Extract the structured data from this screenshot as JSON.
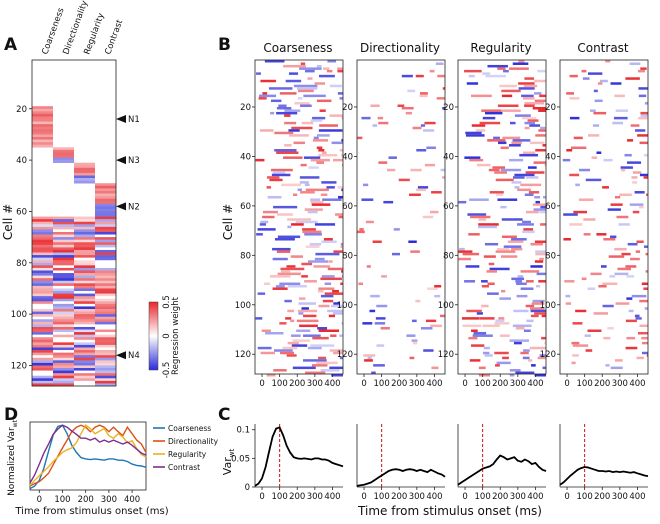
{
  "chart_data": [
    {
      "panel": "A",
      "type": "heatmap",
      "columns": [
        "Coarseness",
        "Directionality",
        "Regularity",
        "Contrast"
      ],
      "ylabel": "Cell #",
      "yticks": [
        20,
        40,
        60,
        80,
        100,
        120
      ],
      "ylim": [
        1,
        128
      ],
      "groups": [
        {
          "feature": "Coarseness",
          "cells": [
            19,
            35
          ]
        },
        {
          "feature": "Directionality",
          "cells": [
            35,
            41
          ]
        },
        {
          "feature": "Regularity",
          "cells": [
            41,
            49
          ]
        },
        {
          "feature": "Contrast",
          "cells": [
            49,
            62
          ]
        },
        {
          "feature": "Coarseness",
          "cells": [
            62,
            128
          ]
        },
        {
          "feature": "Directionality",
          "cells": [
            62,
            128
          ]
        },
        {
          "feature": "Regularity",
          "cells": [
            62,
            128
          ]
        },
        {
          "feature": "Contrast",
          "cells": [
            62,
            128
          ]
        }
      ],
      "annotations": [
        {
          "label": "N1",
          "cell": 24
        },
        {
          "label": "N3",
          "cell": 40
        },
        {
          "label": "N2",
          "cell": 58
        },
        {
          "label": "N4",
          "cell": 116
        }
      ],
      "colorbar": {
        "label": "Regression weight",
        "ticks": [
          "0.5",
          "0",
          "-0.5"
        ],
        "range": [
          -0.5,
          0.5
        ],
        "pos_color": "#e8262b",
        "neg_color": "#2a2ad8"
      }
    },
    {
      "panel": "B",
      "type": "heatmap",
      "titles": [
        "Coarseness",
        "Directionality",
        "Regularity",
        "Contrast"
      ],
      "ylabel": "Cell #",
      "yticks": [
        20,
        40,
        60,
        80,
        100,
        120
      ],
      "xticks": [
        0,
        100,
        200,
        300,
        400
      ],
      "xlim": [
        -40,
        460
      ],
      "ylim": [
        1,
        128
      ]
    },
    {
      "panel": "C",
      "type": "line",
      "ylabel": "Var",
      "ylabel_sub": "wt",
      "xlabel": "Time from stimulus onset (ms)",
      "yticks": [
        "0",
        "0.05",
        "0.1"
      ],
      "ylim": [
        0,
        0.11
      ],
      "xlim": [
        -40,
        460
      ],
      "xticks": [
        0,
        100,
        200,
        300,
        400
      ],
      "stimulus_marker_ms": 100,
      "series": [
        {
          "name": "Coarseness",
          "x": [
            -40,
            -20,
            0,
            20,
            40,
            60,
            80,
            100,
            120,
            140,
            160,
            180,
            200,
            220,
            240,
            260,
            280,
            300,
            320,
            340,
            360,
            380,
            400,
            420,
            440,
            460
          ],
          "y": [
            0.002,
            0.006,
            0.015,
            0.035,
            0.062,
            0.088,
            0.102,
            0.104,
            0.09,
            0.072,
            0.06,
            0.052,
            0.05,
            0.049,
            0.05,
            0.049,
            0.048,
            0.05,
            0.05,
            0.048,
            0.048,
            0.046,
            0.042,
            0.04,
            0.038,
            0.036
          ]
        },
        {
          "name": "Directionality",
          "x": [
            -40,
            -20,
            0,
            20,
            40,
            60,
            80,
            100,
            120,
            140,
            160,
            180,
            200,
            220,
            240,
            260,
            280,
            300,
            320,
            340,
            360,
            380,
            400,
            420,
            440,
            460
          ],
          "y": [
            0.002,
            0.003,
            0.004,
            0.006,
            0.008,
            0.012,
            0.016,
            0.02,
            0.024,
            0.028,
            0.03,
            0.031,
            0.03,
            0.028,
            0.03,
            0.031,
            0.03,
            0.028,
            0.03,
            0.028,
            0.026,
            0.03,
            0.027,
            0.024,
            0.022,
            0.018
          ]
        },
        {
          "name": "Regularity",
          "x": [
            -40,
            -20,
            0,
            20,
            40,
            60,
            80,
            100,
            120,
            140,
            160,
            180,
            200,
            220,
            240,
            260,
            280,
            300,
            320,
            340,
            360,
            380,
            400,
            420,
            440,
            460
          ],
          "y": [
            0.004,
            0.008,
            0.012,
            0.016,
            0.02,
            0.024,
            0.028,
            0.032,
            0.034,
            0.036,
            0.04,
            0.048,
            0.055,
            0.052,
            0.048,
            0.05,
            0.052,
            0.046,
            0.044,
            0.048,
            0.045,
            0.04,
            0.042,
            0.035,
            0.03,
            0.028
          ]
        },
        {
          "name": "Contrast",
          "x": [
            -40,
            -20,
            0,
            20,
            40,
            60,
            80,
            100,
            120,
            140,
            160,
            180,
            200,
            220,
            240,
            260,
            280,
            300,
            320,
            340,
            360,
            380,
            400,
            420,
            440,
            460
          ],
          "y": [
            0.004,
            0.008,
            0.014,
            0.02,
            0.025,
            0.03,
            0.033,
            0.035,
            0.034,
            0.032,
            0.03,
            0.028,
            0.028,
            0.027,
            0.028,
            0.026,
            0.027,
            0.026,
            0.027,
            0.026,
            0.025,
            0.026,
            0.024,
            0.022,
            0.02,
            0.019
          ]
        }
      ]
    },
    {
      "panel": "D",
      "type": "line",
      "ylabel": "Normalized Var",
      "ylabel_sub": "wt",
      "xlabel": "Time from stimulus onset (ms)",
      "xticks": [
        0,
        100,
        200,
        300,
        400
      ],
      "xlim": [
        -40,
        460
      ],
      "ylim": [
        0,
        1.05
      ],
      "legend_position": "right",
      "series": [
        {
          "name": "Coarseness",
          "color": "#1f77b4",
          "x": [
            -40,
            -20,
            0,
            20,
            40,
            60,
            80,
            100,
            120,
            140,
            160,
            180,
            200,
            220,
            240,
            260,
            280,
            300,
            320,
            340,
            360,
            380,
            400,
            420,
            440,
            460
          ],
          "y": [
            0.02,
            0.06,
            0.15,
            0.34,
            0.6,
            0.85,
            0.98,
            1.0,
            0.87,
            0.69,
            0.58,
            0.5,
            0.48,
            0.47,
            0.48,
            0.47,
            0.46,
            0.48,
            0.48,
            0.46,
            0.46,
            0.44,
            0.4,
            0.38,
            0.37,
            0.35
          ]
        },
        {
          "name": "Directionality",
          "color": "#d95319",
          "x": [
            -40,
            -20,
            0,
            20,
            40,
            60,
            80,
            100,
            120,
            140,
            160,
            180,
            200,
            220,
            240,
            260,
            280,
            300,
            320,
            340,
            360,
            380,
            400,
            420,
            440,
            460
          ],
          "y": [
            0.06,
            0.1,
            0.13,
            0.19,
            0.26,
            0.39,
            0.52,
            0.65,
            0.77,
            0.9,
            0.97,
            1.0,
            0.97,
            0.9,
            0.97,
            1.0,
            0.97,
            0.9,
            0.97,
            0.9,
            0.84,
            0.97,
            0.87,
            0.77,
            0.71,
            0.58
          ]
        },
        {
          "name": "Regularity",
          "color": "#edb120",
          "x": [
            -40,
            -20,
            0,
            20,
            40,
            60,
            80,
            100,
            120,
            140,
            160,
            180,
            200,
            220,
            240,
            260,
            280,
            300,
            320,
            340,
            360,
            380,
            400,
            420,
            440,
            460
          ],
          "y": [
            0.07,
            0.15,
            0.22,
            0.29,
            0.36,
            0.44,
            0.51,
            0.58,
            0.62,
            0.65,
            0.73,
            0.87,
            1.0,
            0.95,
            0.87,
            0.91,
            0.95,
            0.84,
            0.8,
            0.87,
            0.82,
            0.73,
            0.76,
            0.64,
            0.55,
            0.51
          ]
        },
        {
          "name": "Contrast",
          "color": "#7e2f8e",
          "x": [
            -40,
            -20,
            0,
            20,
            40,
            60,
            80,
            100,
            120,
            140,
            160,
            180,
            200,
            220,
            240,
            260,
            280,
            300,
            320,
            340,
            360,
            380,
            400,
            420,
            440,
            460
          ],
          "y": [
            0.11,
            0.23,
            0.4,
            0.57,
            0.71,
            0.86,
            0.94,
            1.0,
            0.97,
            0.91,
            0.86,
            0.8,
            0.8,
            0.77,
            0.8,
            0.74,
            0.77,
            0.74,
            0.77,
            0.74,
            0.71,
            0.74,
            0.69,
            0.63,
            0.57,
            0.54
          ]
        }
      ]
    }
  ]
}
